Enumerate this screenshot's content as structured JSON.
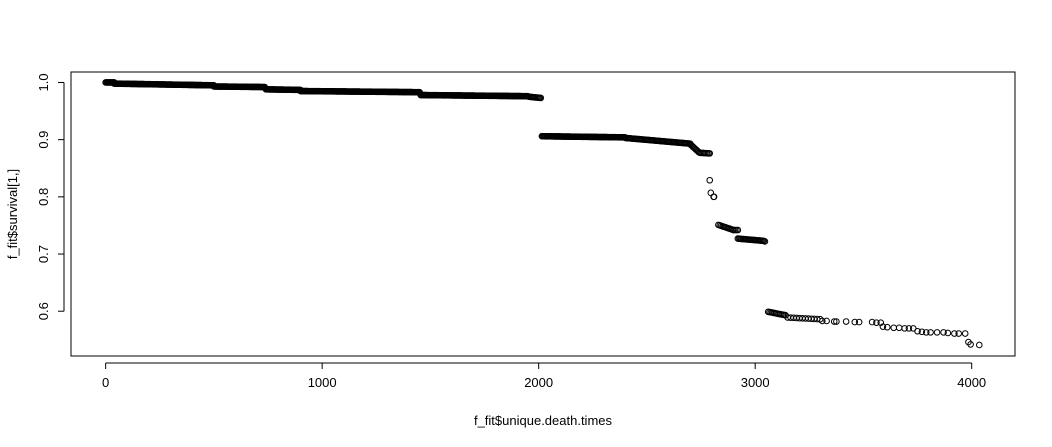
{
  "chart_data": {
    "type": "scatter",
    "title": "",
    "xlabel": "f_fit$unique.death.times",
    "ylabel": "f_fit$survival[1,]",
    "xlim": [
      -160,
      4200
    ],
    "ylim": [
      0.5217,
      1.0183
    ],
    "x_ticks": [
      0,
      1000,
      2000,
      3000,
      4000
    ],
    "x_tick_labels": [
      "0",
      "1000",
      "2000",
      "3000",
      "4000"
    ],
    "y_ticks": [
      0.6,
      0.7,
      0.8,
      0.9,
      1.0
    ],
    "y_tick_labels": [
      "0.6",
      "0.7",
      "0.8",
      "0.9",
      "1.0"
    ],
    "grid": false,
    "marker": "open-circle",
    "color": "#000000",
    "segments": [
      {
        "x_start": 0,
        "x_end": 40,
        "y_start": 1.0,
        "y_end": 1.0,
        "n": 12
      },
      {
        "x_start": 40,
        "x_end": 500,
        "y_start": 0.998,
        "y_end": 0.995,
        "n": 120
      },
      {
        "x_start": 500,
        "x_end": 735,
        "y_start": 0.993,
        "y_end": 0.992,
        "n": 60
      },
      {
        "x_start": 740,
        "x_end": 900,
        "y_start": 0.988,
        "y_end": 0.987,
        "n": 40
      },
      {
        "x_start": 900,
        "x_end": 1450,
        "y_start": 0.985,
        "y_end": 0.983,
        "n": 140
      },
      {
        "x_start": 1455,
        "x_end": 1950,
        "y_start": 0.978,
        "y_end": 0.976,
        "n": 130
      },
      {
        "x_start": 1955,
        "x_end": 2010,
        "y_start": 0.975,
        "y_end": 0.973,
        "n": 12
      },
      {
        "x_start": 2015,
        "x_end": 2400,
        "y_start": 0.906,
        "y_end": 0.904,
        "n": 100
      },
      {
        "x_start": 2400,
        "x_end": 2700,
        "y_start": 0.903,
        "y_end": 0.893,
        "n": 60
      },
      {
        "x_start": 2700,
        "x_end": 2740,
        "y_start": 0.892,
        "y_end": 0.878,
        "n": 10
      },
      {
        "x_start": 2745,
        "x_end": 2790,
        "y_start": 0.877,
        "y_end": 0.876,
        "n": 8
      },
      {
        "x_start": 2830,
        "x_end": 2900,
        "y_start": 0.751,
        "y_end": 0.742,
        "n": 12
      },
      {
        "x_start": 2900,
        "x_end": 2920,
        "y_start": 0.742,
        "y_end": 0.742,
        "n": 4
      },
      {
        "x_start": 2920,
        "x_end": 3040,
        "y_start": 0.727,
        "y_end": 0.723,
        "n": 24
      },
      {
        "x_start": 3060,
        "x_end": 3140,
        "y_start": 0.599,
        "y_end": 0.593,
        "n": 14
      },
      {
        "x_start": 3150,
        "x_end": 3300,
        "y_start": 0.589,
        "y_end": 0.586,
        "n": 12
      }
    ],
    "points": [
      {
        "x": 2785,
        "y": 0.876
      },
      {
        "x": 2790,
        "y": 0.829
      },
      {
        "x": 2795,
        "y": 0.807
      },
      {
        "x": 2810,
        "y": 0.8
      },
      {
        "x": 2808,
        "y": 0.8
      },
      {
        "x": 3045,
        "y": 0.722
      },
      {
        "x": 3310,
        "y": 0.583
      },
      {
        "x": 3330,
        "y": 0.583
      },
      {
        "x": 3365,
        "y": 0.582
      },
      {
        "x": 3375,
        "y": 0.582
      },
      {
        "x": 3420,
        "y": 0.582
      },
      {
        "x": 3460,
        "y": 0.581
      },
      {
        "x": 3480,
        "y": 0.581
      },
      {
        "x": 3540,
        "y": 0.581
      },
      {
        "x": 3560,
        "y": 0.58
      },
      {
        "x": 3580,
        "y": 0.58
      },
      {
        "x": 3590,
        "y": 0.573
      },
      {
        "x": 3610,
        "y": 0.572
      },
      {
        "x": 3640,
        "y": 0.571
      },
      {
        "x": 3665,
        "y": 0.571
      },
      {
        "x": 3690,
        "y": 0.57
      },
      {
        "x": 3710,
        "y": 0.57
      },
      {
        "x": 3730,
        "y": 0.57
      },
      {
        "x": 3750,
        "y": 0.565
      },
      {
        "x": 3770,
        "y": 0.564
      },
      {
        "x": 3790,
        "y": 0.563
      },
      {
        "x": 3810,
        "y": 0.563
      },
      {
        "x": 3840,
        "y": 0.563
      },
      {
        "x": 3870,
        "y": 0.563
      },
      {
        "x": 3890,
        "y": 0.562
      },
      {
        "x": 3920,
        "y": 0.561
      },
      {
        "x": 3940,
        "y": 0.561
      },
      {
        "x": 3970,
        "y": 0.561
      },
      {
        "x": 3985,
        "y": 0.546
      },
      {
        "x": 3995,
        "y": 0.542
      },
      {
        "x": 4035,
        "y": 0.541
      }
    ]
  }
}
